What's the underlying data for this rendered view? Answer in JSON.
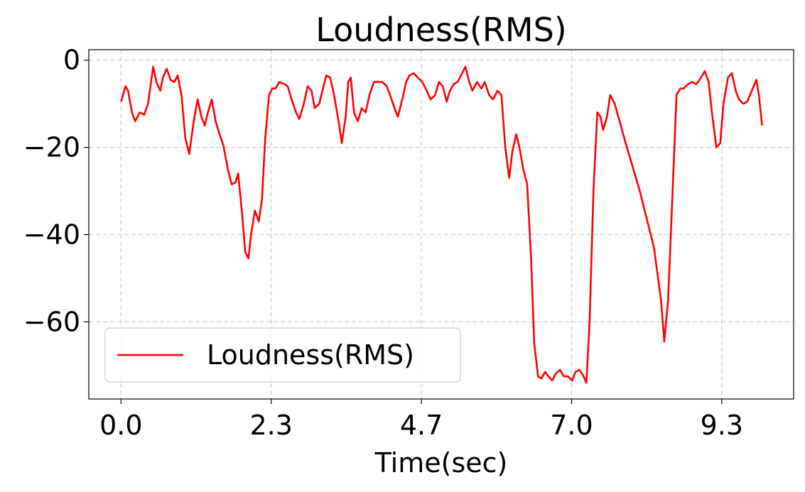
{
  "chart_data": {
    "type": "line",
    "title": "Loudness(RMS)",
    "x_label": "Time(sec)",
    "x": [
      0,
      0.07,
      0.11,
      0.17,
      0.22,
      0.29,
      0.36,
      0.42,
      0.5,
      0.55,
      0.61,
      0.65,
      0.71,
      0.77,
      0.83,
      0.88,
      0.94,
      1.0,
      1.06,
      1.13,
      1.19,
      1.25,
      1.3,
      1.35,
      1.41,
      1.47,
      1.52,
      1.59,
      1.66,
      1.72,
      1.78,
      1.82,
      1.88,
      1.93,
      1.98,
      2.02,
      2.08,
      2.14,
      2.19,
      2.24,
      2.3,
      2.35,
      2.4,
      2.46,
      2.54,
      2.59,
      2.65,
      2.72,
      2.77,
      2.84,
      2.9,
      2.96,
      3.01,
      3.08,
      3.13,
      3.19,
      3.25,
      3.31,
      3.38,
      3.43,
      3.49,
      3.53,
      3.57,
      3.62,
      3.68,
      3.74,
      3.8,
      3.86,
      3.93,
      4.0,
      4.06,
      4.13,
      4.18,
      4.25,
      4.3,
      4.37,
      4.43,
      4.48,
      4.55,
      4.61,
      4.68,
      4.75,
      4.81,
      4.88,
      4.94,
      5.0,
      5.06,
      5.11,
      5.17,
      5.23,
      5.3,
      5.35,
      5.41,
      5.46,
      5.53,
      5.6,
      5.65,
      5.72,
      5.78,
      5.85,
      5.91,
      5.97,
      6.03,
      6.08,
      6.14,
      6.19,
      6.25,
      6.31,
      6.37,
      6.42,
      6.48,
      6.53,
      6.59,
      6.64,
      6.7,
      6.75,
      6.82,
      6.88,
      6.94,
      7.01,
      7.06,
      7.12,
      7.17,
      7.23,
      7.28,
      7.34,
      7.4,
      7.45,
      7.49,
      7.55,
      7.6,
      7.67,
      7.84,
      8.06,
      8.28,
      8.39,
      8.44,
      8.5,
      8.57,
      8.63,
      8.69,
      8.74,
      8.81,
      8.87,
      8.94,
      9.01,
      9.07,
      9.13,
      9.18,
      9.25,
      9.31,
      9.36,
      9.43,
      9.49,
      9.55,
      9.6,
      9.67,
      9.73,
      9.8,
      9.87,
      9.91,
      9.96
    ],
    "series": [
      {
        "name": "Loudness(RMS)",
        "color": "#ff0000",
        "values": [
          -9.5,
          -6,
          -7,
          -12,
          -14,
          -12,
          -12.5,
          -10,
          -1.5,
          -5,
          -7,
          -4,
          -2,
          -4.5,
          -5,
          -3.5,
          -8,
          -18,
          -21.5,
          -14,
          -9,
          -13,
          -15,
          -12,
          -9,
          -14,
          -16.5,
          -19.5,
          -25,
          -28.5,
          -28,
          -26,
          -35,
          -44,
          -45.5,
          -40,
          -34.5,
          -37,
          -32,
          -18,
          -8,
          -6.5,
          -6.5,
          -5,
          -5.5,
          -6,
          -9,
          -12,
          -13.5,
          -10,
          -6,
          -7,
          -11,
          -10,
          -7,
          -3.5,
          -4,
          -8,
          -14,
          -19,
          -13,
          -5,
          -4,
          -12,
          -14,
          -11,
          -12,
          -8,
          -5,
          -5,
          -5,
          -6,
          -8,
          -11,
          -13,
          -9,
          -5,
          -3.5,
          -3,
          -4,
          -5,
          -7,
          -9,
          -8,
          -5,
          -6,
          -9.5,
          -7,
          -5.5,
          -5,
          -3,
          -1.5,
          -5,
          -7,
          -5,
          -6.5,
          -5,
          -8,
          -9,
          -7,
          -8,
          -20,
          -27,
          -21,
          -17,
          -20,
          -25,
          -28.5,
          -45,
          -65,
          -72.5,
          -73,
          -71.5,
          -72.5,
          -73.5,
          -72,
          -71,
          -72.5,
          -72.5,
          -73.5,
          -71.5,
          -71,
          -72,
          -74,
          -60,
          -30,
          -12,
          -13,
          -16,
          -13,
          -8,
          -10,
          -19,
          -30,
          -43,
          -55,
          -64.5,
          -55,
          -30,
          -8,
          -6.5,
          -6.5,
          -5.5,
          -5,
          -5.5,
          -4,
          -2.5,
          -5,
          -12,
          -20,
          -19,
          -10,
          -4,
          -3,
          -7,
          -9,
          -10,
          -9.5,
          -7,
          -4.5,
          -8,
          -15
        ]
      }
    ],
    "xlim": [
      -0.5,
      10.45
    ],
    "ylim": [
      -77.7,
      2.4
    ],
    "xticks": [
      {
        "value": 0,
        "label": "0.0"
      },
      {
        "value": 2.3333,
        "label": "2.3"
      },
      {
        "value": 4.6667,
        "label": "4.7"
      },
      {
        "value": 7.0,
        "label": "7.0"
      },
      {
        "value": 9.3333,
        "label": "9.3"
      }
    ],
    "yticks": [
      0,
      {
        "value": -20,
        "label": "−20"
      },
      {
        "value": -40,
        "label": "−40"
      },
      {
        "value": -60,
        "label": "−60"
      }
    ],
    "grid": true,
    "legend": "lower left"
  }
}
